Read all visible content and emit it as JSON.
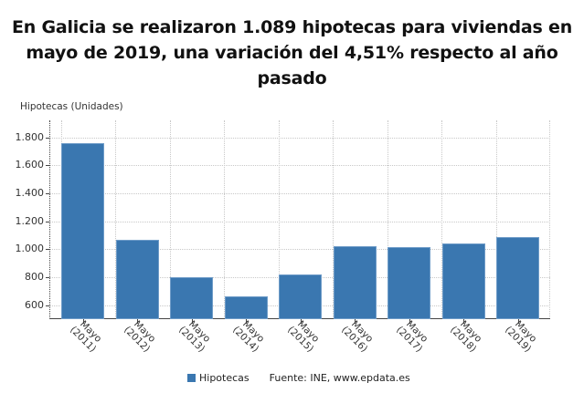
{
  "title": "En Galicia se realizaron 1.089 hipotecas para viviendas en mayo de 2019, una variación del 4,51% respecto al año pasado",
  "title_lines": [
    "En Galicia se realizaron 1.089 hipotecas para viviendas en",
    "mayo de 2019, una variación del 4,51% respecto al año",
    "pasado"
  ],
  "y_axis_label": "Hipotecas (Unidades)",
  "y_ticks": [
    "1.800",
    "1.600",
    "1.400",
    "1.200",
    "1.000",
    "800",
    "600"
  ],
  "x_labels": [
    {
      "line1": "Mayo",
      "line2": "(2011)"
    },
    {
      "line1": "Mayo",
      "line2": "(2012)"
    },
    {
      "line1": "Mayo",
      "line2": "(2013)"
    },
    {
      "line1": "Mayo",
      "line2": "(2014)"
    },
    {
      "line1": "Mayo",
      "line2": "(2015)"
    },
    {
      "line1": "Mayo",
      "line2": "(2016)"
    },
    {
      "line1": "Mayo",
      "line2": "(2017)"
    },
    {
      "line1": "Mayo",
      "line2": "(2018)"
    },
    {
      "line1": "Mayo",
      "line2": "(2019)"
    }
  ],
  "legend": {
    "series_label": "Hipotecas",
    "source": "Fuente: INE, www.epdata.es"
  },
  "colors": {
    "bar": "#3a77b0",
    "bar_border": "#6f9cc8",
    "grid": "#c8c8c8",
    "axis": "#444444"
  },
  "chart_data": {
    "type": "bar",
    "title": "En Galicia se realizaron 1.089 hipotecas para viviendas en mayo de 2019, una variación del 4,51% respecto al año pasado",
    "xlabel": "",
    "ylabel": "Hipotecas (Unidades)",
    "categories": [
      "Mayo (2011)",
      "Mayo (2012)",
      "Mayo (2013)",
      "Mayo (2014)",
      "Mayo (2015)",
      "Mayo (2016)",
      "Mayo (2017)",
      "Mayo (2018)",
      "Mayo (2019)"
    ],
    "series": [
      {
        "name": "Hipotecas",
        "values": [
          1758,
          1066,
          799,
          662,
          818,
          1020,
          1014,
          1042,
          1089
        ]
      }
    ],
    "ylim": [
      500,
      1900
    ],
    "y_ticks": [
      600,
      800,
      1000,
      1200,
      1400,
      1600,
      1800
    ],
    "grid": true,
    "legend_position": "bottom",
    "source": "Fuente: INE, www.epdata.es"
  }
}
